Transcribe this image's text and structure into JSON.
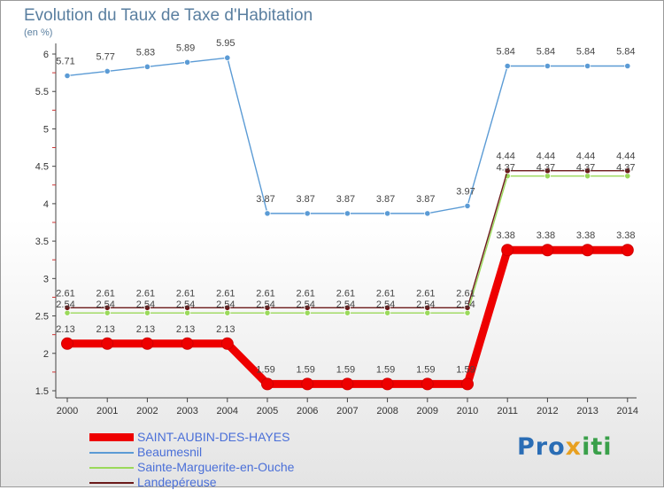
{
  "title": "Evolution du Taux de Taxe d'Habitation",
  "subtitle": "(en %)",
  "logo": "Proxiti",
  "chart_data": {
    "type": "line",
    "title": "Evolution du Taux de Taxe d'Habitation",
    "ylabel": "(en %)",
    "x": [
      2000,
      2001,
      2002,
      2003,
      2004,
      2005,
      2006,
      2007,
      2008,
      2009,
      2010,
      2011,
      2012,
      2013,
      2014
    ],
    "ylim": [
      1.5,
      6
    ],
    "yticks": [
      1.5,
      2,
      2.5,
      3,
      3.5,
      4,
      4.5,
      5,
      5.5,
      6
    ],
    "grid": false,
    "legend": "bottom-left",
    "series": [
      {
        "name": "SAINT-AUBIN-DES-HAYES",
        "color": "#ee0000",
        "values": [
          2.13,
          2.13,
          2.13,
          2.13,
          2.13,
          1.59,
          1.59,
          1.59,
          1.59,
          1.59,
          1.59,
          3.38,
          3.38,
          3.38,
          3.38
        ]
      },
      {
        "name": "Beaumesnil",
        "color": "#5b9bd5",
        "values": [
          5.71,
          5.77,
          5.83,
          5.89,
          5.95,
          3.87,
          3.87,
          3.87,
          3.87,
          3.87,
          3.97,
          5.84,
          5.84,
          5.84,
          5.84
        ]
      },
      {
        "name": "Sainte-Marguerite-en-Ouche",
        "color": "#9ad95a",
        "values": [
          2.54,
          2.54,
          2.54,
          2.54,
          2.54,
          2.54,
          2.54,
          2.54,
          2.54,
          2.54,
          2.54,
          4.37,
          4.37,
          4.37,
          4.37
        ]
      },
      {
        "name": "Landepéreuse",
        "color": "#6b1a1a",
        "values": [
          2.61,
          2.61,
          2.61,
          2.61,
          2.61,
          2.61,
          2.61,
          2.61,
          2.61,
          2.61,
          2.61,
          4.44,
          4.44,
          4.44,
          4.44
        ]
      }
    ]
  }
}
